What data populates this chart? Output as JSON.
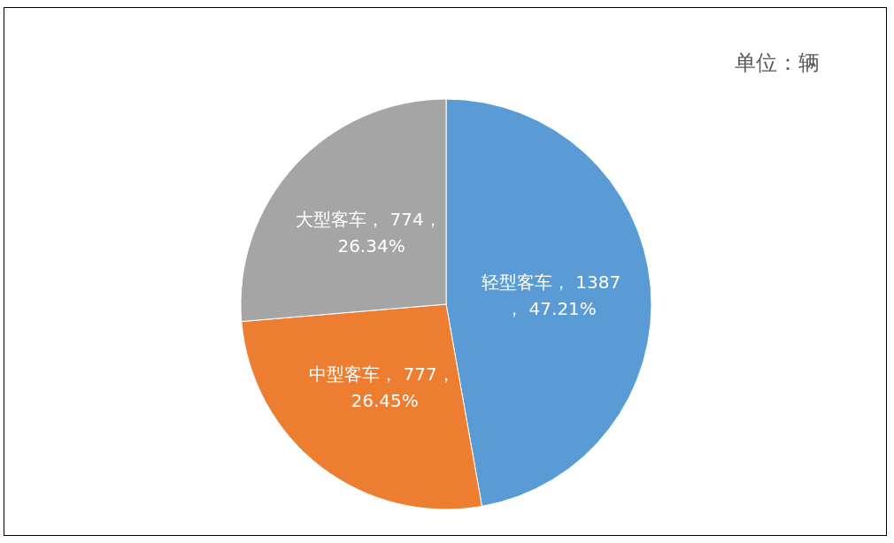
{
  "chart_data": {
    "type": "pie",
    "categories": [
      "轻型客车",
      "中型客车",
      "大型客车"
    ],
    "values": [
      1387,
      777,
      774
    ],
    "colors": [
      "#5b9bd5",
      "#ed7d31",
      "#a5a5a5"
    ],
    "value_labels": [
      "1387， 47.21%",
      "777， 26.45%",
      "774， 26.34%"
    ],
    "annotations": [
      "单位：辆"
    ],
    "legend": false
  }
}
